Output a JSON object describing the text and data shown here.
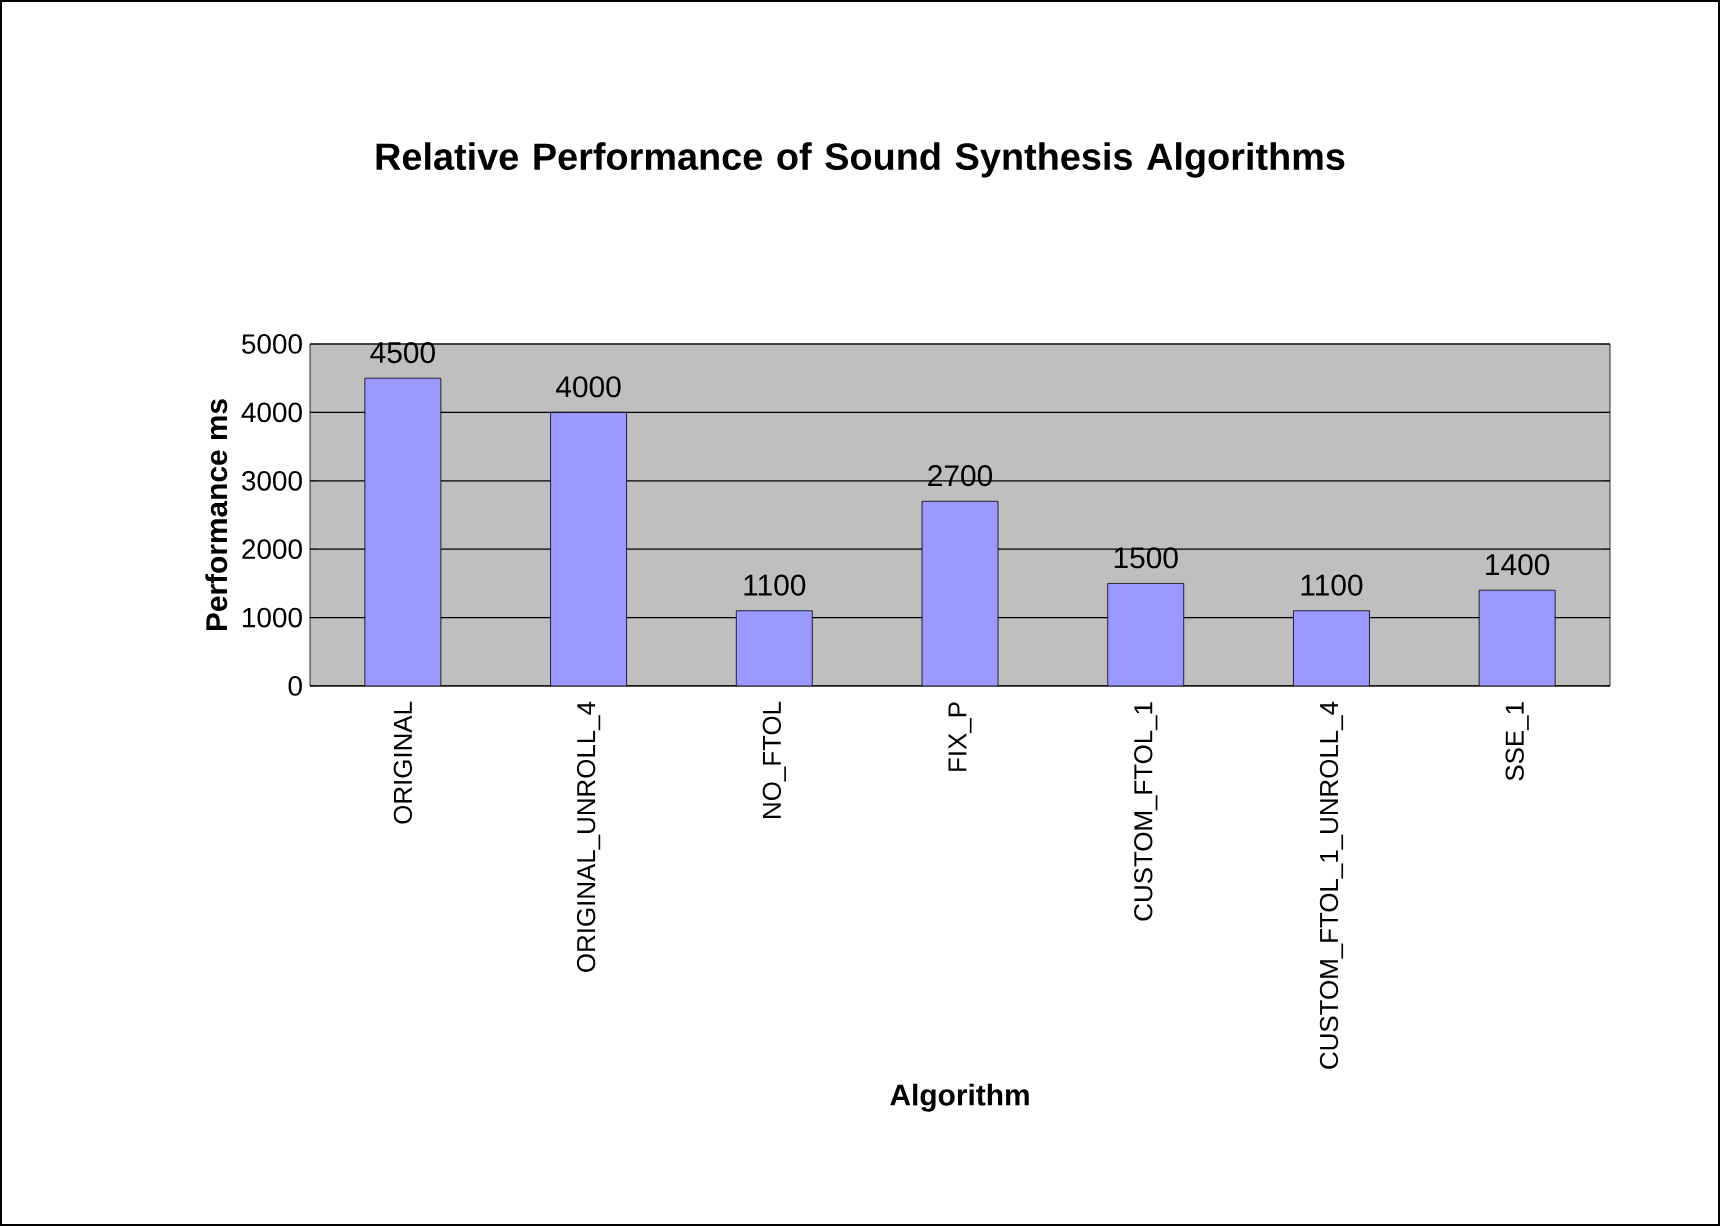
{
  "chart_data": {
    "type": "bar",
    "title": "Relative Performance of Sound Synthesis Algorithms",
    "xlabel": "Algorithm",
    "ylabel": "Performance ms",
    "categories": [
      "ORIGINAL",
      "ORIGINAL_UNROLL_4",
      "NO_FTOL",
      "FIX_P",
      "CUSTOM_FTOL_1",
      "CUSTOM_FTOL_1_UNROLL_4",
      "SSE_1"
    ],
    "values": [
      4500,
      4000,
      1100,
      2700,
      1500,
      1100,
      1400
    ],
    "color": "#9999ff",
    "ylim": [
      0,
      5000
    ],
    "yticks": [
      0,
      1000,
      2000,
      3000,
      4000,
      5000
    ],
    "grid": "y",
    "data_labels": true
  }
}
